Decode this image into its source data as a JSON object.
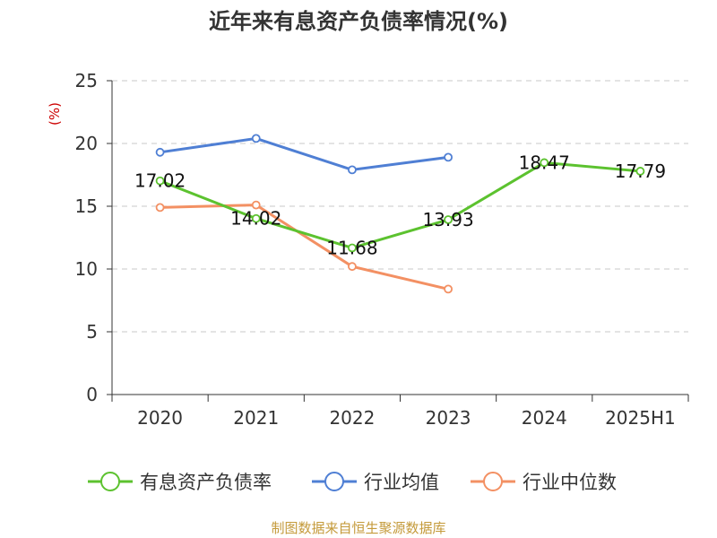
{
  "chart_data": {
    "type": "line",
    "title": "近年来有息资产负债率情况(%)",
    "unit_label": "(%)",
    "categories": [
      "2020",
      "2021",
      "2022",
      "2023",
      "2024",
      "2025H1"
    ],
    "y_ticks": [
      "0",
      "5",
      "10",
      "15",
      "20",
      "25"
    ],
    "ylim": [
      0,
      25
    ],
    "grid": true,
    "legend_position": "bottom",
    "series": [
      {
        "name": "有息资产负债率",
        "color": "#5cc22f",
        "values": [
          17.02,
          14.02,
          11.68,
          13.93,
          18.47,
          17.79
        ],
        "labels": [
          "17.02",
          "14.02",
          "11.68",
          "13.93",
          "18.47",
          "17.79"
        ]
      },
      {
        "name": "行业均值",
        "color": "#4f7fd4",
        "values": [
          19.3,
          20.4,
          17.9,
          18.9,
          null,
          null
        ]
      },
      {
        "name": "行业中位数",
        "color": "#f39063",
        "values": [
          14.9,
          15.1,
          10.2,
          8.4,
          null,
          null
        ]
      }
    ],
    "source": "制图数据来自恒生聚源数据库"
  }
}
